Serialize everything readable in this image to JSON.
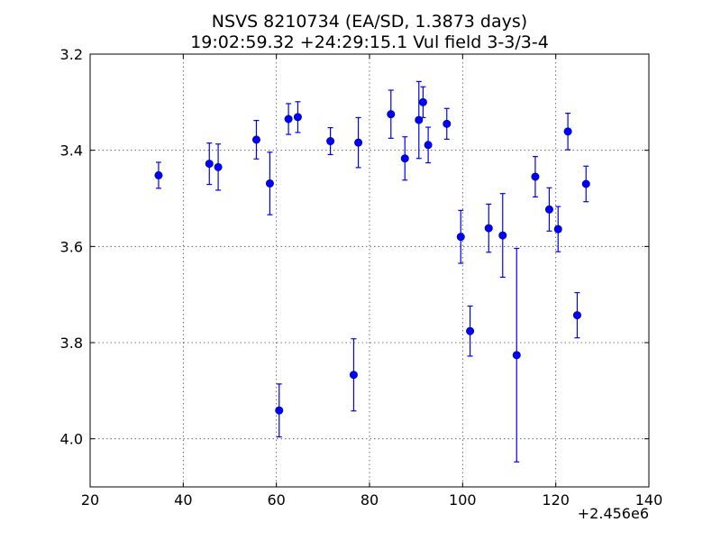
{
  "chart_data": {
    "type": "scatter",
    "title_line1": "NSVS 8210734 (EA/SD, 1.3873 days)",
    "title_line2": "19:02:59.32 +24:29:15.1 Vul field 3-3/3-4",
    "xlabel": "",
    "ylabel": "",
    "x_offset_label": "+2.456e6",
    "xlim": [
      20,
      140
    ],
    "ylim": [
      4.1,
      3.2
    ],
    "y_inverted": true,
    "grid": true,
    "x_ticks": [
      "20",
      "40",
      "60",
      "80",
      "100",
      "120",
      "140"
    ],
    "y_ticks": [
      "3.2",
      "3.4",
      "3.6",
      "3.8",
      "4.0"
    ],
    "marker_color": "#0000ff",
    "points": [
      {
        "x": 34.7,
        "y": 3.452,
        "err": 0.027
      },
      {
        "x": 45.6,
        "y": 3.428,
        "err": 0.043
      },
      {
        "x": 47.5,
        "y": 3.435,
        "err": 0.048
      },
      {
        "x": 55.7,
        "y": 3.378,
        "err": 0.04
      },
      {
        "x": 58.6,
        "y": 3.469,
        "err": 0.065
      },
      {
        "x": 60.6,
        "y": 3.941,
        "err": 0.055
      },
      {
        "x": 62.6,
        "y": 3.335,
        "err": 0.032
      },
      {
        "x": 64.6,
        "y": 3.331,
        "err": 0.032
      },
      {
        "x": 71.6,
        "y": 3.381,
        "err": 0.028
      },
      {
        "x": 76.6,
        "y": 3.867,
        "err": 0.075
      },
      {
        "x": 77.6,
        "y": 3.384,
        "err": 0.052
      },
      {
        "x": 84.6,
        "y": 3.325,
        "err": 0.05
      },
      {
        "x": 87.6,
        "y": 3.417,
        "err": 0.045
      },
      {
        "x": 90.6,
        "y": 3.337,
        "err": 0.08
      },
      {
        "x": 91.5,
        "y": 3.3,
        "err": 0.032
      },
      {
        "x": 92.6,
        "y": 3.389,
        "err": 0.037
      },
      {
        "x": 96.6,
        "y": 3.345,
        "err": 0.032
      },
      {
        "x": 99.6,
        "y": 3.58,
        "err": 0.055
      },
      {
        "x": 101.6,
        "y": 3.776,
        "err": 0.052
      },
      {
        "x": 105.6,
        "y": 3.562,
        "err": 0.05
      },
      {
        "x": 108.6,
        "y": 3.577,
        "err": 0.087
      },
      {
        "x": 111.6,
        "y": 3.826,
        "err": 0.222
      },
      {
        "x": 115.6,
        "y": 3.455,
        "err": 0.042
      },
      {
        "x": 118.6,
        "y": 3.523,
        "err": 0.045
      },
      {
        "x": 120.5,
        "y": 3.564,
        "err": 0.047
      },
      {
        "x": 122.6,
        "y": 3.361,
        "err": 0.038
      },
      {
        "x": 124.6,
        "y": 3.743,
        "err": 0.047
      },
      {
        "x": 126.5,
        "y": 3.47,
        "err": 0.037
      }
    ]
  }
}
